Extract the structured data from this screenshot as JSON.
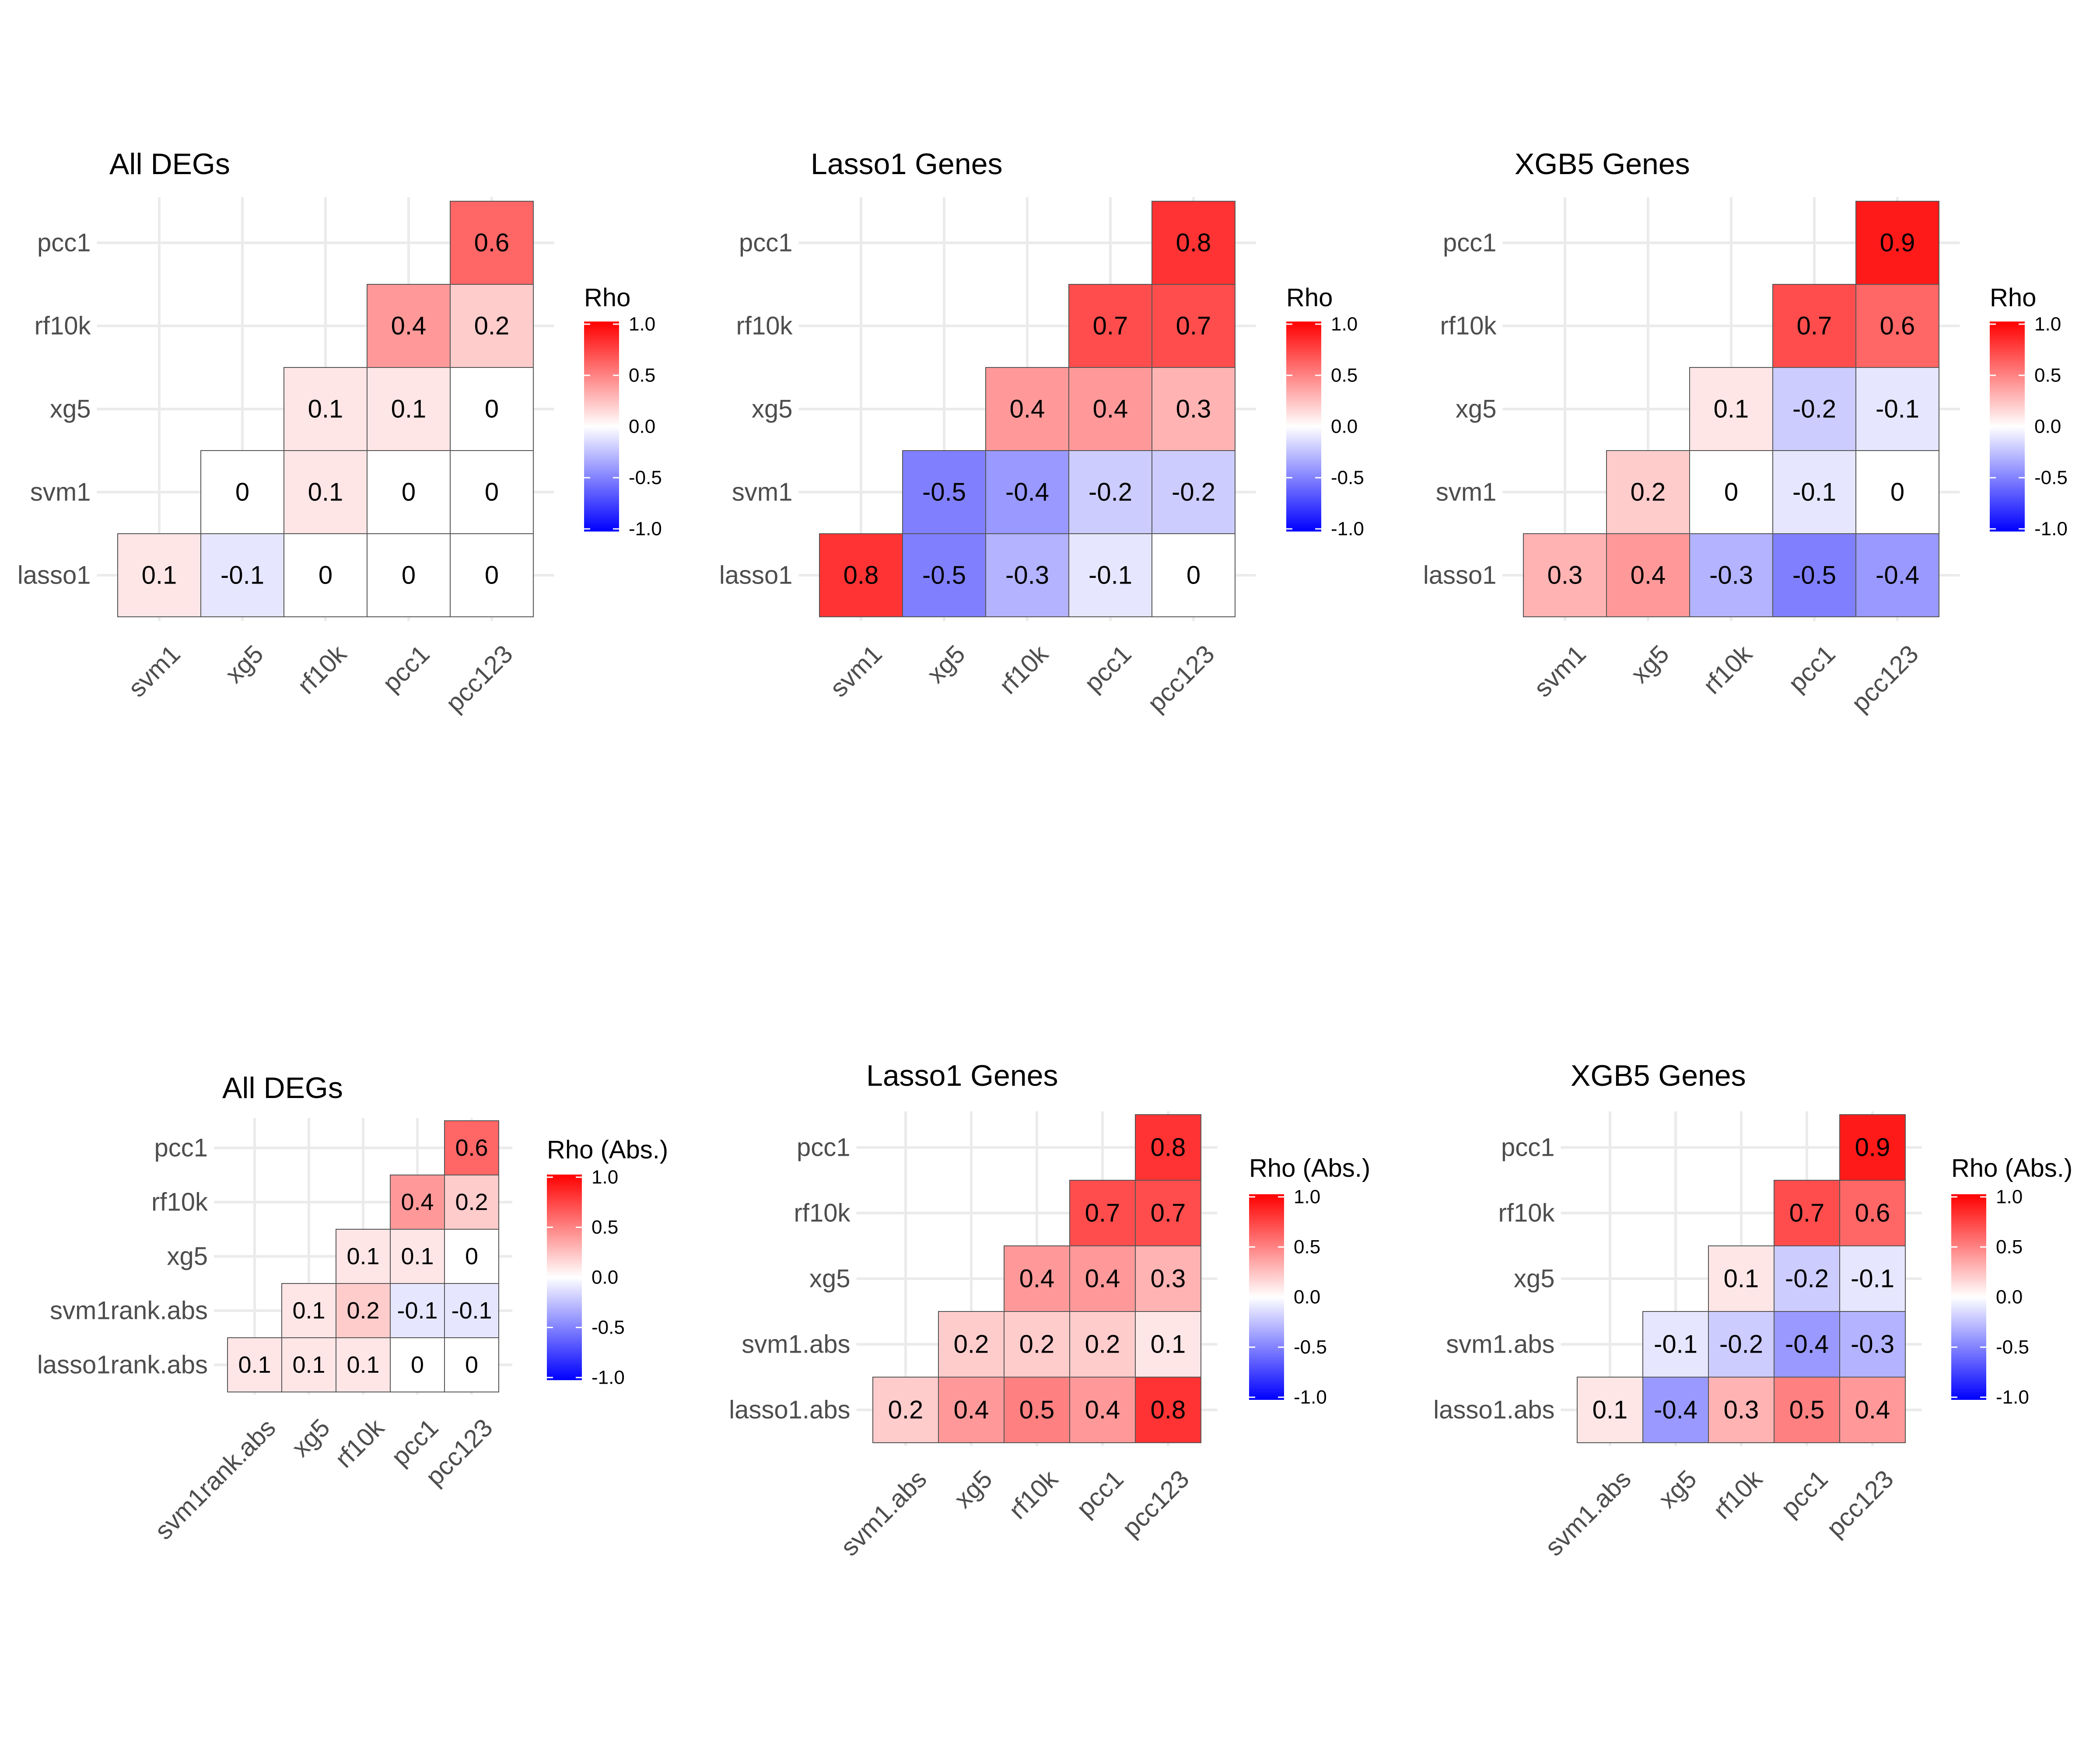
{
  "colors": {
    "low": "#0000FF",
    "mid": "#FFFFFF",
    "high": "#FF0000",
    "grid": "#EBEBEB",
    "text": "#4D4D4D"
  },
  "chart_data": [
    {
      "type": "heatmap",
      "title": "All DEGs",
      "legend_title": "Rho",
      "legend_ticks": [
        "1.0",
        "0.5",
        "0.0",
        "-0.5",
        "-1.0"
      ],
      "x": [
        "svm1",
        "xg5",
        "rf10k",
        "pcc1",
        "pcc123"
      ],
      "y": [
        "lasso1",
        "svm1",
        "xg5",
        "rf10k",
        "pcc1"
      ],
      "values": [
        [
          0.1,
          -0.1,
          0,
          0,
          0
        ],
        [
          null,
          0,
          0.1,
          0,
          0
        ],
        [
          null,
          null,
          0.1,
          0.1,
          0
        ],
        [
          null,
          null,
          null,
          0.4,
          0.2
        ],
        [
          null,
          null,
          null,
          null,
          0.6
        ]
      ],
      "labels": [
        [
          "0.1",
          "-0.1",
          "0",
          "0",
          "0"
        ],
        [
          null,
          "0",
          "0.1",
          "0",
          "0"
        ],
        [
          null,
          null,
          "0.1",
          "0.1",
          "0"
        ],
        [
          null,
          null,
          null,
          "0.4",
          "0.2"
        ],
        [
          null,
          null,
          null,
          null,
          "0.6"
        ]
      ]
    },
    {
      "type": "heatmap",
      "title": "Lasso1 Genes",
      "legend_title": "Rho",
      "legend_ticks": [
        "1.0",
        "0.5",
        "0.0",
        "-0.5",
        "-1.0"
      ],
      "x": [
        "svm1",
        "xg5",
        "rf10k",
        "pcc1",
        "pcc123"
      ],
      "y": [
        "lasso1",
        "svm1",
        "xg5",
        "rf10k",
        "pcc1"
      ],
      "values": [
        [
          0.8,
          -0.5,
          -0.3,
          -0.1,
          0
        ],
        [
          null,
          -0.5,
          -0.4,
          -0.2,
          -0.2
        ],
        [
          null,
          null,
          0.4,
          0.4,
          0.3
        ],
        [
          null,
          null,
          null,
          0.7,
          0.7
        ],
        [
          null,
          null,
          null,
          null,
          0.8
        ]
      ],
      "labels": [
        [
          "0.8",
          "-0.5",
          "-0.3",
          "-0.1",
          "0"
        ],
        [
          null,
          "-0.5",
          "-0.4",
          "-0.2",
          "-0.2"
        ],
        [
          null,
          null,
          "0.4",
          "0.4",
          "0.3"
        ],
        [
          null,
          null,
          null,
          "0.7",
          "0.7"
        ],
        [
          null,
          null,
          null,
          null,
          "0.8"
        ]
      ]
    },
    {
      "type": "heatmap",
      "title": "XGB5 Genes",
      "legend_title": "Rho",
      "legend_ticks": [
        "1.0",
        "0.5",
        "0.0",
        "-0.5",
        "-1.0"
      ],
      "x": [
        "svm1",
        "xg5",
        "rf10k",
        "pcc1",
        "pcc123"
      ],
      "y": [
        "lasso1",
        "svm1",
        "xg5",
        "rf10k",
        "pcc1"
      ],
      "values": [
        [
          0.3,
          0.4,
          -0.3,
          -0.5,
          -0.4
        ],
        [
          null,
          0.2,
          0,
          -0.1,
          0
        ],
        [
          null,
          null,
          0.1,
          -0.2,
          -0.1
        ],
        [
          null,
          null,
          null,
          0.7,
          0.6
        ],
        [
          null,
          null,
          null,
          null,
          0.9
        ]
      ],
      "labels": [
        [
          "0.3",
          "0.4",
          "-0.3",
          "-0.5",
          "-0.4"
        ],
        [
          null,
          "0.2",
          "0",
          "-0.1",
          "0"
        ],
        [
          null,
          null,
          "0.1",
          "-0.2",
          "-0.1"
        ],
        [
          null,
          null,
          null,
          "0.7",
          "0.6"
        ],
        [
          null,
          null,
          null,
          null,
          "0.9"
        ]
      ]
    },
    {
      "type": "heatmap",
      "title": "All DEGs",
      "legend_title": "Rho (Abs.)",
      "legend_ticks": [
        "1.0",
        "0.5",
        "0.0",
        "-0.5",
        "-1.0"
      ],
      "x": [
        "svm1rank.abs",
        "xg5",
        "rf10k",
        "pcc1",
        "pcc123"
      ],
      "y": [
        "lasso1rank.abs",
        "svm1rank.abs",
        "xg5",
        "rf10k",
        "pcc1"
      ],
      "values": [
        [
          0.1,
          0.1,
          0.1,
          0,
          0
        ],
        [
          null,
          0.1,
          0.2,
          -0.1,
          -0.1
        ],
        [
          null,
          null,
          0.1,
          0.1,
          0
        ],
        [
          null,
          null,
          null,
          0.4,
          0.2
        ],
        [
          null,
          null,
          null,
          null,
          0.6
        ]
      ],
      "labels": [
        [
          "0.1",
          "0.1",
          "0.1",
          "0",
          "0"
        ],
        [
          null,
          "0.1",
          "0.2",
          "-0.1",
          "-0.1"
        ],
        [
          null,
          null,
          "0.1",
          "0.1",
          "0"
        ],
        [
          null,
          null,
          null,
          "0.4",
          "0.2"
        ],
        [
          null,
          null,
          null,
          null,
          "0.6"
        ]
      ]
    },
    {
      "type": "heatmap",
      "title": "Lasso1 Genes",
      "legend_title": "Rho (Abs.)",
      "legend_ticks": [
        "1.0",
        "0.5",
        "0.0",
        "-0.5",
        "-1.0"
      ],
      "x": [
        "svm1.abs",
        "xg5",
        "rf10k",
        "pcc1",
        "pcc123"
      ],
      "y": [
        "lasso1.abs",
        "svm1.abs",
        "xg5",
        "rf10k",
        "pcc1"
      ],
      "values": [
        [
          0.2,
          0.4,
          0.5,
          0.4,
          0.8
        ],
        [
          null,
          0.2,
          0.2,
          0.2,
          0.1
        ],
        [
          null,
          null,
          0.4,
          0.4,
          0.3
        ],
        [
          null,
          null,
          null,
          0.7,
          0.7
        ],
        [
          null,
          null,
          null,
          null,
          0.8
        ]
      ],
      "labels": [
        [
          "0.2",
          "0.4",
          "0.5",
          "0.4",
          "0.8"
        ],
        [
          null,
          "0.2",
          "0.2",
          "0.2",
          "0.1"
        ],
        [
          null,
          null,
          "0.4",
          "0.4",
          "0.3"
        ],
        [
          null,
          null,
          null,
          "0.7",
          "0.7"
        ],
        [
          null,
          null,
          null,
          null,
          "0.8"
        ]
      ]
    },
    {
      "type": "heatmap",
      "title": "XGB5 Genes",
      "legend_title": "Rho (Abs.)",
      "legend_ticks": [
        "1.0",
        "0.5",
        "0.0",
        "-0.5",
        "-1.0"
      ],
      "x": [
        "svm1.abs",
        "xg5",
        "rf10k",
        "pcc1",
        "pcc123"
      ],
      "y": [
        "lasso1.abs",
        "svm1.abs",
        "xg5",
        "rf10k",
        "pcc1"
      ],
      "values": [
        [
          0.1,
          -0.4,
          0.3,
          0.5,
          0.4
        ],
        [
          null,
          -0.1,
          -0.2,
          -0.4,
          -0.3
        ],
        [
          null,
          null,
          0.1,
          -0.2,
          -0.1
        ],
        [
          null,
          null,
          null,
          0.7,
          0.6
        ],
        [
          null,
          null,
          null,
          null,
          0.9
        ]
      ],
      "labels": [
        [
          "0.1",
          "-0.4",
          "0.3",
          "0.5",
          "0.4"
        ],
        [
          null,
          "-0.1",
          "-0.2",
          "-0.4",
          "-0.3"
        ],
        [
          null,
          null,
          "0.1",
          "-0.2",
          "-0.1"
        ],
        [
          null,
          null,
          null,
          "0.7",
          "0.6"
        ],
        [
          null,
          null,
          null,
          null,
          "0.9"
        ]
      ]
    }
  ]
}
